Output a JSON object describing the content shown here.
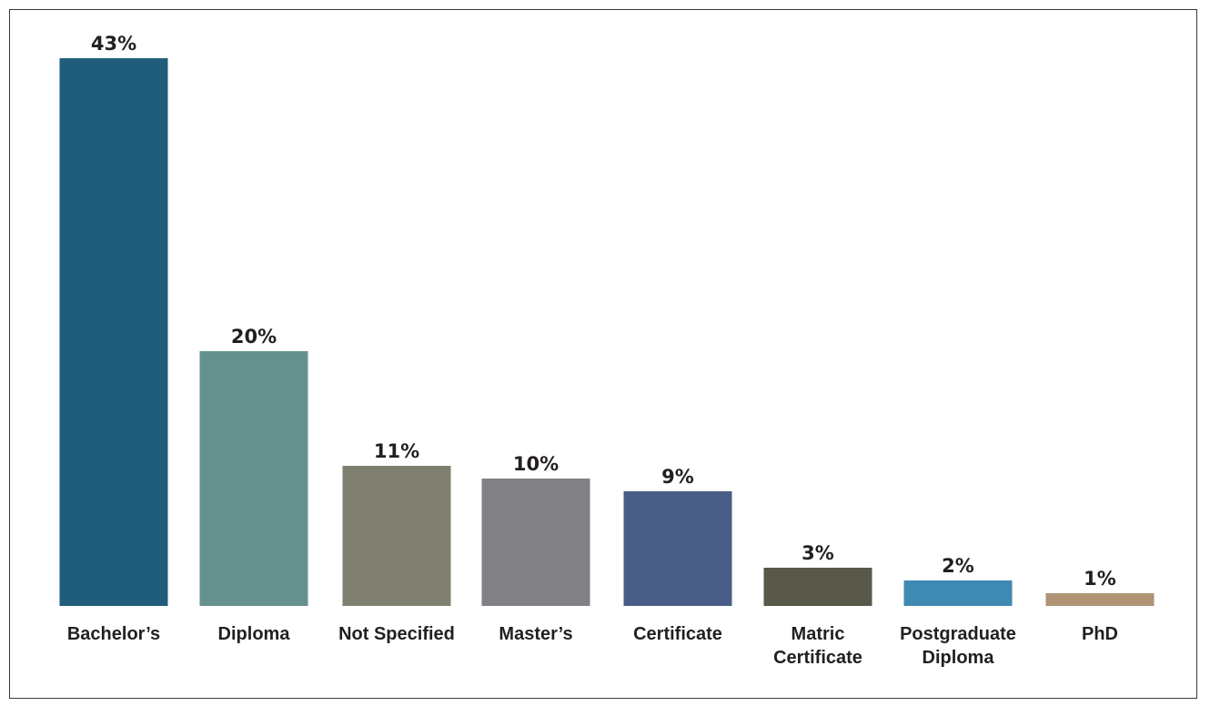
{
  "chart_data": {
    "type": "bar",
    "title": "",
    "xlabel": "",
    "ylabel": "",
    "categories": [
      "Bachelor’s",
      "Diploma",
      "Not Specified",
      "Master’s",
      "Certificate",
      "Matric Certificate",
      "Postgraduate Diploma",
      "PhD"
    ],
    "category_lines": [
      [
        "Bachelor’s"
      ],
      [
        "Diploma"
      ],
      [
        "Not Specified"
      ],
      [
        "Master’s"
      ],
      [
        "Certificate"
      ],
      [
        "Matric",
        "Certificate"
      ],
      [
        "Postgraduate",
        "Diploma"
      ],
      [
        "PhD"
      ]
    ],
    "values": [
      43,
      20,
      11,
      10,
      9,
      3,
      2,
      1
    ],
    "value_labels": [
      "43%",
      "20%",
      "11%",
      "10%",
      "9%",
      "3%",
      "2%",
      "1%"
    ],
    "colors": [
      "#1f5d7a",
      "#64918d",
      "#808070",
      "#808085",
      "#4a5d87",
      "#58594b",
      "#3f8ab2",
      "#ae9475"
    ],
    "ylim": [
      0,
      43
    ],
    "grid": false,
    "legend": "none"
  }
}
